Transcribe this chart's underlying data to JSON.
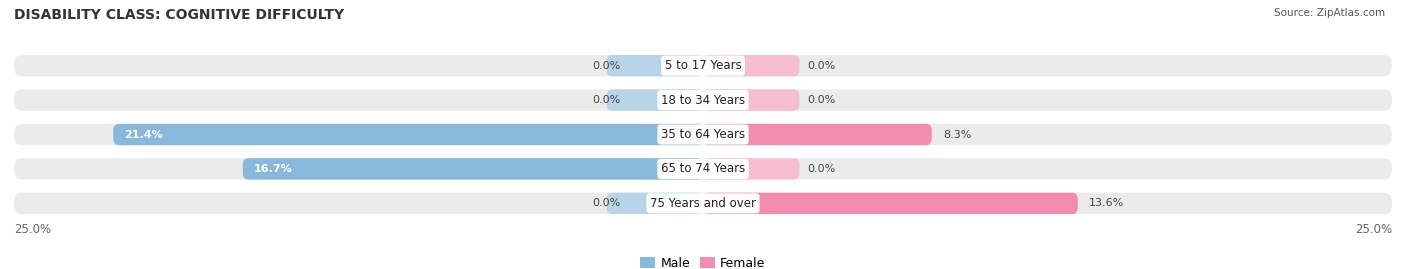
{
  "title": "DISABILITY CLASS: COGNITIVE DIFFICULTY",
  "source": "Source: ZipAtlas.com",
  "categories": [
    "5 to 17 Years",
    "18 to 34 Years",
    "35 to 64 Years",
    "65 to 74 Years",
    "75 Years and over"
  ],
  "male_values": [
    0.0,
    0.0,
    21.4,
    16.7,
    0.0
  ],
  "female_values": [
    0.0,
    0.0,
    8.3,
    0.0,
    13.6
  ],
  "male_color": "#88b8dc",
  "female_color": "#f28db0",
  "male_color_zero": "#b8d4e8",
  "female_color_zero": "#f7bdd0",
  "bar_bg_color": "#ebebeb",
  "max_value": 25.0,
  "x_left_label": "25.0%",
  "x_right_label": "25.0%",
  "title_fontsize": 10,
  "label_fontsize": 8.5,
  "bar_height": 0.62,
  "background_color": "#ffffff"
}
